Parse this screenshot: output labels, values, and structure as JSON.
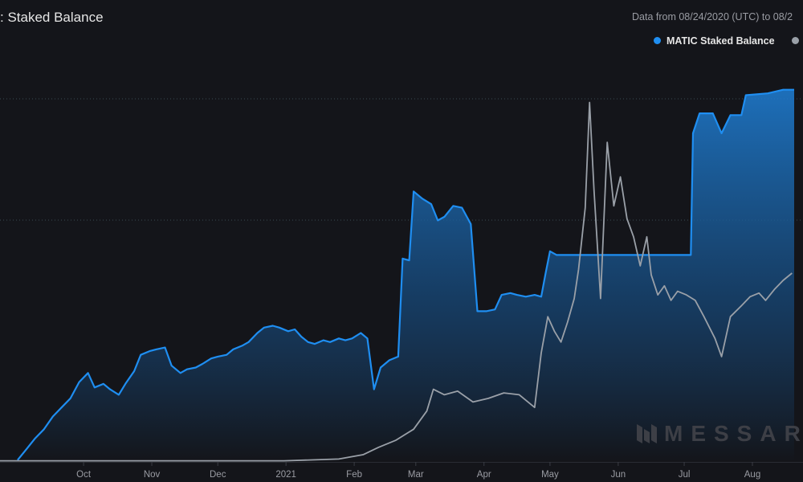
{
  "header": {
    "title": ": Staked Balance",
    "date_range": "Data from 08/24/2020 (UTC) to 08/2"
  },
  "legend": [
    {
      "label": "MATIC Staked Balance",
      "color": "#1f8ef1"
    },
    {
      "label": "",
      "color": "#9aa0a8"
    }
  ],
  "watermark": {
    "text": "MESSAR",
    "icon": "messari-logo-icon"
  },
  "chart_data": {
    "type": "area",
    "x_ticks": [
      "Oct",
      "Nov",
      "Dec",
      "2021",
      "Feb",
      "Mar",
      "Apr",
      "May",
      "Jun",
      "Jul",
      "Aug"
    ],
    "x_domain": [
      "2020-08-24",
      "2021-08-24"
    ],
    "grid": true,
    "legend_placement": "top-right",
    "series": [
      {
        "name": "MATIC Staked Balance",
        "color": "#1f8ef1",
        "style": "area",
        "points": [
          [
            "2020-09-01",
            0.5
          ],
          [
            "2020-09-05",
            3.5
          ],
          [
            "2020-09-09",
            6.5
          ],
          [
            "2020-09-13",
            9
          ],
          [
            "2020-09-17",
            12.5
          ],
          [
            "2020-09-21",
            15
          ],
          [
            "2020-09-25",
            17.5
          ],
          [
            "2020-09-29",
            22
          ],
          [
            "2020-10-03",
            24.5
          ],
          [
            "2020-10-06",
            20.5
          ],
          [
            "2020-10-10",
            21.5
          ],
          [
            "2020-10-13",
            20
          ],
          [
            "2020-10-17",
            18.5
          ],
          [
            "2020-10-20",
            21.5
          ],
          [
            "2020-10-24",
            25
          ],
          [
            "2020-10-27",
            29.5
          ],
          [
            "2020-10-31",
            30.5
          ],
          [
            "2020-11-03",
            31
          ],
          [
            "2020-11-07",
            31.5
          ],
          [
            "2020-11-10",
            26.5
          ],
          [
            "2020-11-14",
            24.5
          ],
          [
            "2020-11-17",
            25.5
          ],
          [
            "2020-11-21",
            26
          ],
          [
            "2020-11-24",
            27
          ],
          [
            "2020-11-28",
            28.5
          ],
          [
            "2020-12-01",
            29
          ],
          [
            "2020-12-05",
            29.5
          ],
          [
            "2020-12-08",
            31
          ],
          [
            "2020-12-12",
            32
          ],
          [
            "2020-12-15",
            33
          ],
          [
            "2020-12-19",
            35.5
          ],
          [
            "2020-12-22",
            37
          ],
          [
            "2020-12-26",
            37.5
          ],
          [
            "2020-12-29",
            37
          ],
          [
            "2021-01-02",
            36
          ],
          [
            "2021-01-05",
            36.5
          ],
          [
            "2021-01-08",
            34.5
          ],
          [
            "2021-01-11",
            33
          ],
          [
            "2021-01-14",
            32.5
          ],
          [
            "2021-01-18",
            33.5
          ],
          [
            "2021-01-21",
            33
          ],
          [
            "2021-01-25",
            34
          ],
          [
            "2021-01-28",
            33.5
          ],
          [
            "2021-01-31",
            34
          ],
          [
            "2021-02-04",
            35.5
          ],
          [
            "2021-02-07",
            34
          ],
          [
            "2021-02-10",
            20
          ],
          [
            "2021-02-13",
            26
          ],
          [
            "2021-02-17",
            28
          ],
          [
            "2021-02-21",
            29
          ],
          [
            "2021-02-23",
            56
          ],
          [
            "2021-02-26",
            55.5
          ],
          [
            "2021-02-28",
            74.5
          ],
          [
            "2021-03-04",
            72.5
          ],
          [
            "2021-03-08",
            71
          ],
          [
            "2021-03-11",
            66.5
          ],
          [
            "2021-03-14",
            67.5
          ],
          [
            "2021-03-18",
            70.5
          ],
          [
            "2021-03-22",
            70
          ],
          [
            "2021-03-26",
            65.5
          ],
          [
            "2021-03-29",
            41.5
          ],
          [
            "2021-04-02",
            41.5
          ],
          [
            "2021-04-06",
            42
          ],
          [
            "2021-04-09",
            46
          ],
          [
            "2021-04-13",
            46.5
          ],
          [
            "2021-04-16",
            46
          ],
          [
            "2021-04-20",
            45.5
          ],
          [
            "2021-04-24",
            46
          ],
          [
            "2021-04-27",
            45.5
          ],
          [
            "2021-04-29",
            52
          ],
          [
            "2021-05-01",
            58
          ],
          [
            "2021-05-04",
            57
          ],
          [
            "2021-07-04",
            57
          ],
          [
            "2021-07-05",
            90.5
          ],
          [
            "2021-07-08",
            96
          ],
          [
            "2021-07-14",
            96
          ],
          [
            "2021-07-18",
            90.5
          ],
          [
            "2021-07-22",
            95.5
          ],
          [
            "2021-07-27",
            95.5
          ],
          [
            "2021-07-29",
            101
          ],
          [
            "2021-08-08",
            101.5
          ],
          [
            "2021-08-15",
            102.5
          ],
          [
            "2021-08-20",
            102.5
          ]
        ]
      },
      {
        "name": "",
        "color": "#9aa0a8",
        "style": "line",
        "points": [
          [
            "2020-08-24",
            0.3
          ],
          [
            "2020-12-31",
            0.3
          ],
          [
            "2021-01-25",
            0.8
          ],
          [
            "2021-02-05",
            2
          ],
          [
            "2021-02-12",
            4
          ],
          [
            "2021-02-20",
            6
          ],
          [
            "2021-02-28",
            9
          ],
          [
            "2021-03-06",
            14
          ],
          [
            "2021-03-09",
            20
          ],
          [
            "2021-03-14",
            18.5
          ],
          [
            "2021-03-20",
            19.5
          ],
          [
            "2021-03-27",
            16.5
          ],
          [
            "2021-04-03",
            17.5
          ],
          [
            "2021-04-10",
            19
          ],
          [
            "2021-04-17",
            18.5
          ],
          [
            "2021-04-24",
            15
          ],
          [
            "2021-04-27",
            30
          ],
          [
            "2021-04-30",
            40
          ],
          [
            "2021-05-03",
            36
          ],
          [
            "2021-05-06",
            33
          ],
          [
            "2021-05-09",
            38.5
          ],
          [
            "2021-05-12",
            45
          ],
          [
            "2021-05-14",
            53
          ],
          [
            "2021-05-17",
            70
          ],
          [
            "2021-05-19",
            99
          ],
          [
            "2021-05-21",
            75
          ],
          [
            "2021-05-24",
            45
          ],
          [
            "2021-05-27",
            88
          ],
          [
            "2021-05-30",
            70.5
          ],
          [
            "2021-06-02",
            78.5
          ],
          [
            "2021-06-05",
            67
          ],
          [
            "2021-06-08",
            62
          ],
          [
            "2021-06-11",
            54
          ],
          [
            "2021-06-14",
            62
          ],
          [
            "2021-06-16",
            51.5
          ],
          [
            "2021-06-19",
            46
          ],
          [
            "2021-06-22",
            48.5
          ],
          [
            "2021-06-25",
            44.5
          ],
          [
            "2021-06-28",
            47
          ],
          [
            "2021-07-02",
            46
          ],
          [
            "2021-07-06",
            44.5
          ],
          [
            "2021-07-10",
            40
          ],
          [
            "2021-07-15",
            34
          ],
          [
            "2021-07-18",
            29
          ],
          [
            "2021-07-22",
            40
          ],
          [
            "2021-07-27",
            43
          ],
          [
            "2021-07-31",
            45.5
          ],
          [
            "2021-08-04",
            46.5
          ],
          [
            "2021-08-07",
            44.5
          ],
          [
            "2021-08-11",
            47.5
          ],
          [
            "2021-08-15",
            50
          ],
          [
            "2021-08-19",
            52
          ]
        ]
      }
    ]
  }
}
